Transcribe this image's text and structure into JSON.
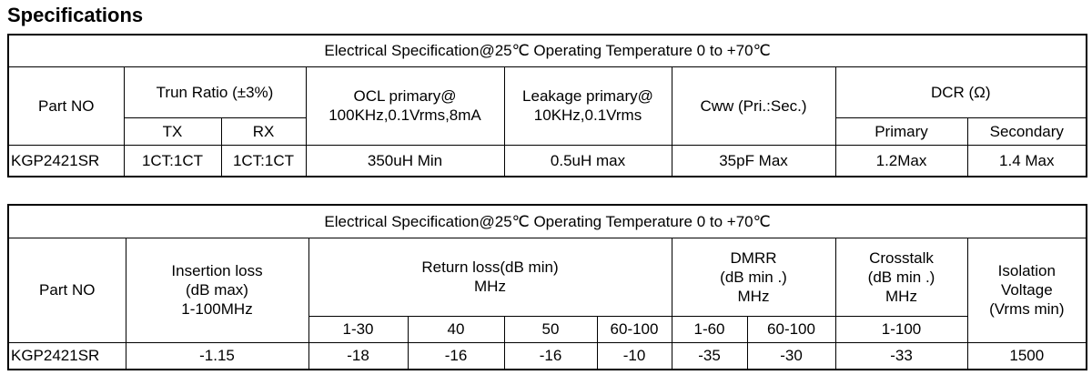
{
  "title": "Specifications",
  "table_1": {
    "caption": "Electrical Specification@25℃   Operating Temperature  0 to +70℃",
    "header": {
      "part_no": "Part NO",
      "turn_ratio": "Trun Ratio  (±3%)",
      "tx": "TX",
      "rx": "RX",
      "ocl": "OCL primary@\n100KHz,0.1Vrms,8mA",
      "leakage": "Leakage primary@\n10KHz,0.1Vrms",
      "cww": "Cww  (Pri.:Sec.)",
      "dcr": "DCR (Ω)",
      "primary": "Primary",
      "secondary": "Secondary"
    },
    "rows": [
      [
        "KGP2421SR",
        "1CT:1CT",
        "1CT:1CT",
        "350uH Min",
        "0.5uH max",
        "35pF Max",
        "1.2Max",
        "1.4 Max"
      ]
    ]
  },
  "table_2": {
    "caption": "Electrical Specification@25℃   Operating Temperature 0 to +70℃",
    "header": {
      "part_no": "Part NO",
      "insertion_loss": "Insertion loss\n(dB max)\n1-100MHz",
      "return_loss": "Return loss(dB min)\nMHz",
      "dmrr": "DMRR\n(dB min .)\nMHz",
      "crosstalk": "Crosstalk\n(dB min .)\nMHz",
      "isolation": "Isolation\nVoltage\n(Vrms min)",
      "sub": [
        "1-30",
        "40",
        "50",
        "60-100",
        "1-60",
        "60-100",
        "1-100"
      ]
    },
    "rows": [
      [
        "KGP2421SR",
        "-1.15",
        "-18",
        "-16",
        "-16",
        "-10",
        "-35",
        "-30",
        "-33",
        "1500"
      ]
    ]
  }
}
